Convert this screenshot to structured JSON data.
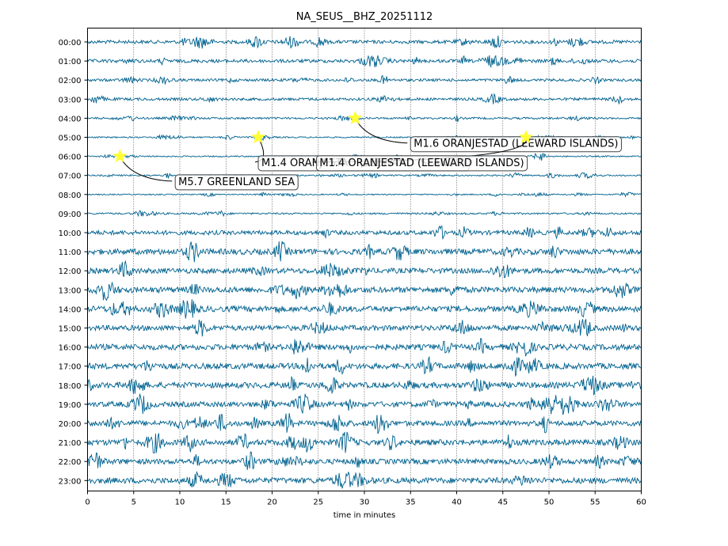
{
  "chart_data": {
    "type": "line",
    "title": "NA_SEUS__BHZ_20251112",
    "xlabel": "time in minutes",
    "ylabel": "",
    "xlim": [
      0,
      60
    ],
    "x_ticks": [
      0,
      5,
      10,
      15,
      20,
      25,
      30,
      35,
      40,
      45,
      50,
      55,
      60
    ],
    "grid": "vertical dotted",
    "trace_color": "#00628f",
    "rows": [
      {
        "label": "00:00",
        "amplitude": 0.35
      },
      {
        "label": "01:00",
        "amplitude": 0.35
      },
      {
        "label": "02:00",
        "amplitude": 0.28
      },
      {
        "label": "03:00",
        "amplitude": 0.28
      },
      {
        "label": "04:00",
        "amplitude": 0.2
      },
      {
        "label": "05:00",
        "amplitude": 0.14
      },
      {
        "label": "06:00",
        "amplitude": 0.14
      },
      {
        "label": "07:00",
        "amplitude": 0.16
      },
      {
        "label": "08:00",
        "amplitude": 0.12
      },
      {
        "label": "09:00",
        "amplitude": 0.18
      },
      {
        "label": "10:00",
        "amplitude": 0.45
      },
      {
        "label": "11:00",
        "amplitude": 0.6
      },
      {
        "label": "12:00",
        "amplitude": 0.55
      },
      {
        "label": "13:00",
        "amplitude": 0.6
      },
      {
        "label": "14:00",
        "amplitude": 0.6
      },
      {
        "label": "15:00",
        "amplitude": 0.55
      },
      {
        "label": "16:00",
        "amplitude": 0.6
      },
      {
        "label": "17:00",
        "amplitude": 0.6
      },
      {
        "label": "18:00",
        "amplitude": 0.6
      },
      {
        "label": "19:00",
        "amplitude": 0.55
      },
      {
        "label": "20:00",
        "amplitude": 0.55
      },
      {
        "label": "21:00",
        "amplitude": 0.6
      },
      {
        "label": "22:00",
        "amplitude": 0.55
      },
      {
        "label": "23:00",
        "amplitude": 0.6
      }
    ],
    "events": [
      {
        "row": 4,
        "minute": 29.0,
        "label": "M1.6 ORANJESTAD (LEEWARD ISLANDS)",
        "label_minute": 35.0,
        "label_row": 5.3
      },
      {
        "row": 5,
        "minute": 18.5,
        "label": "M1.4 ORANJESTAD (LEEWARD ISLANDS)",
        "label_minute": 18.5,
        "label_row": 6.3
      },
      {
        "row": 5,
        "minute": 47.5,
        "label": "M1.4 ORANJESTAD (LEEWARD ISLANDS)",
        "label_minute": 24.8,
        "label_row": 6.3
      },
      {
        "row": 6,
        "minute": 3.5,
        "label": "M5.7 GREENLAND SEA",
        "label_minute": 9.5,
        "label_row": 7.3
      }
    ],
    "event_marker_color": "#ffff33"
  }
}
